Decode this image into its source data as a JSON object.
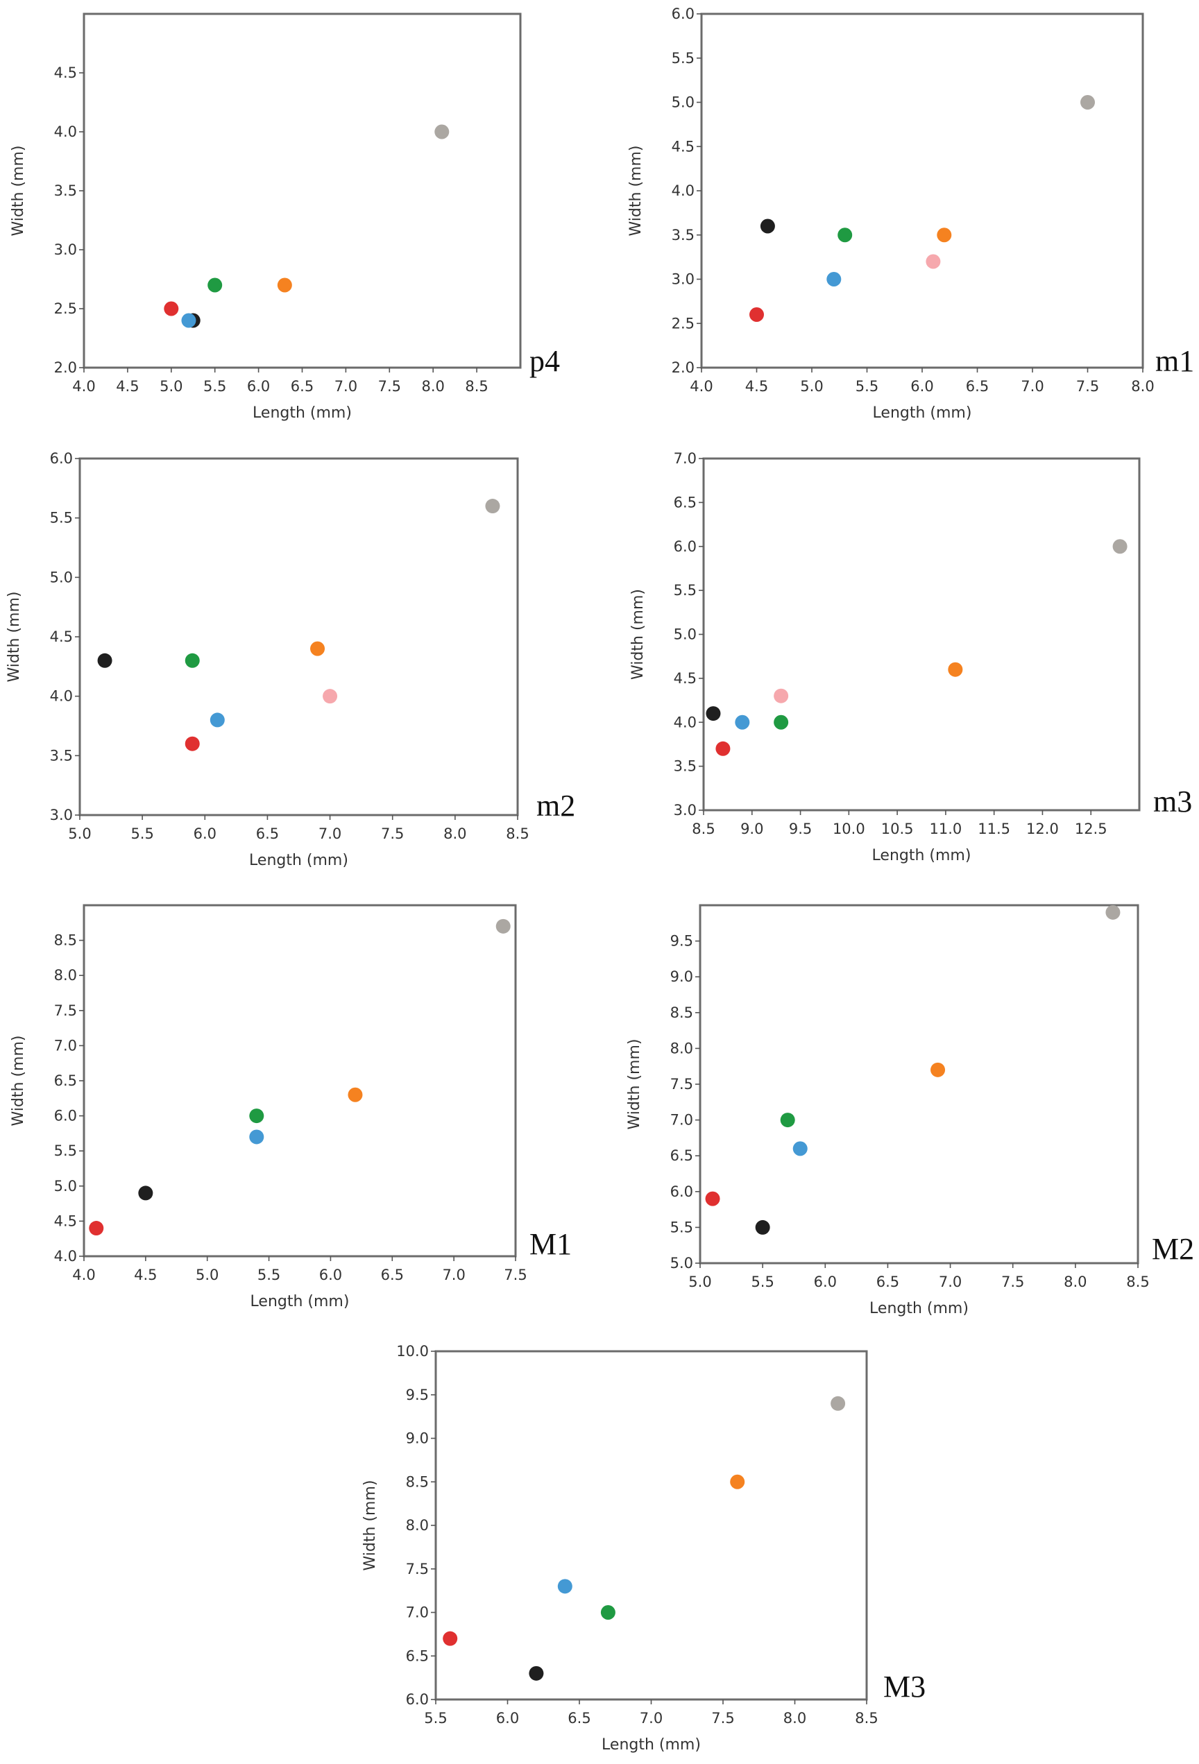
{
  "colors": {
    "gray": "#aba7a2",
    "black": "#1f1f1f",
    "green": "#1f9a42",
    "orange": "#f58220",
    "pink": "#f6a8ad",
    "blue": "#4499d4",
    "red": "#e03030"
  },
  "chart_data": [
    {
      "type": "scatter",
      "label": "p4",
      "xlabel": "Length (mm)",
      "ylabel": "Width (mm)",
      "xlim": [
        4.0,
        9.0
      ],
      "ylim": [
        2.0,
        5.0
      ],
      "xticks": [
        "4.0",
        "4.5",
        "5.0",
        "5.5",
        "6.0",
        "6.5",
        "7.0",
        "7.5",
        "8.0",
        "8.5"
      ],
      "yticks": [
        "2.0",
        "2.5",
        "3.0",
        "3.5",
        "4.0",
        "4.5"
      ],
      "points": [
        {
          "x": 5.0,
          "y": 2.5,
          "color": "red"
        },
        {
          "x": 5.25,
          "y": 2.4,
          "color": "black"
        },
        {
          "x": 5.2,
          "y": 2.4,
          "color": "blue"
        },
        {
          "x": 5.5,
          "y": 2.7,
          "color": "green"
        },
        {
          "x": 6.3,
          "y": 2.7,
          "color": "orange"
        },
        {
          "x": 8.1,
          "y": 4.0,
          "color": "gray"
        }
      ]
    },
    {
      "type": "scatter",
      "label": "m1",
      "xlabel": "Length (mm)",
      "ylabel": "Width (mm)",
      "xlim": [
        4.0,
        8.0
      ],
      "ylim": [
        2.0,
        6.0
      ],
      "xticks": [
        "4.0",
        "4.5",
        "5.0",
        "5.5",
        "6.0",
        "6.5",
        "7.0",
        "7.5",
        "8.0"
      ],
      "yticks": [
        "2.0",
        "2.5",
        "3.0",
        "3.5",
        "4.0",
        "4.5",
        "5.0",
        "5.5",
        "6.0"
      ],
      "points": [
        {
          "x": 4.5,
          "y": 2.6,
          "color": "red"
        },
        {
          "x": 4.6,
          "y": 3.6,
          "color": "black"
        },
        {
          "x": 5.2,
          "y": 3.0,
          "color": "blue"
        },
        {
          "x": 5.3,
          "y": 3.5,
          "color": "green"
        },
        {
          "x": 6.1,
          "y": 3.2,
          "color": "pink"
        },
        {
          "x": 6.2,
          "y": 3.5,
          "color": "orange"
        },
        {
          "x": 7.5,
          "y": 5.0,
          "color": "gray"
        }
      ]
    },
    {
      "type": "scatter",
      "label": "m2",
      "xlabel": "Length (mm)",
      "ylabel": "Width (mm)",
      "xlim": [
        5.0,
        8.5
      ],
      "ylim": [
        3.0,
        6.0
      ],
      "xticks": [
        "5.0",
        "5.5",
        "6.0",
        "6.5",
        "7.0",
        "7.5",
        "8.0",
        "8.5"
      ],
      "yticks": [
        "3.0",
        "3.5",
        "4.0",
        "4.5",
        "5.0",
        "5.5",
        "6.0"
      ],
      "points": [
        {
          "x": 5.2,
          "y": 4.3,
          "color": "black"
        },
        {
          "x": 5.9,
          "y": 4.3,
          "color": "green"
        },
        {
          "x": 5.9,
          "y": 3.6,
          "color": "red"
        },
        {
          "x": 6.1,
          "y": 3.8,
          "color": "blue"
        },
        {
          "x": 6.9,
          "y": 4.4,
          "color": "orange"
        },
        {
          "x": 7.0,
          "y": 4.0,
          "color": "pink"
        },
        {
          "x": 8.3,
          "y": 5.6,
          "color": "gray"
        }
      ]
    },
    {
      "type": "scatter",
      "label": "m3",
      "xlabel": "Length (mm)",
      "ylabel": "Width (mm)",
      "xlim": [
        8.5,
        13.0
      ],
      "ylim": [
        3.0,
        7.0
      ],
      "xticks": [
        "8.5",
        "9.0",
        "9.5",
        "10.0",
        "10.5",
        "11.0",
        "11.5",
        "12.0",
        "12.5"
      ],
      "yticks": [
        "3.0",
        "3.5",
        "4.0",
        "4.5",
        "5.0",
        "5.5",
        "6.0",
        "6.5",
        "7.0"
      ],
      "points": [
        {
          "x": 8.6,
          "y": 4.1,
          "color": "black"
        },
        {
          "x": 8.7,
          "y": 3.7,
          "color": "red"
        },
        {
          "x": 8.9,
          "y": 4.0,
          "color": "blue"
        },
        {
          "x": 9.3,
          "y": 4.3,
          "color": "pink"
        },
        {
          "x": 9.3,
          "y": 4.0,
          "color": "green"
        },
        {
          "x": 11.1,
          "y": 4.6,
          "color": "orange"
        },
        {
          "x": 12.8,
          "y": 6.0,
          "color": "gray"
        }
      ]
    },
    {
      "type": "scatter",
      "label": "M1",
      "xlabel": "Length (mm)",
      "ylabel": "Width (mm)",
      "xlim": [
        4.0,
        7.5
      ],
      "ylim": [
        4.0,
        9.0
      ],
      "xticks": [
        "4.0",
        "4.5",
        "5.0",
        "5.5",
        "6.0",
        "6.5",
        "7.0",
        "7.5"
      ],
      "yticks": [
        "4.0",
        "4.5",
        "5.0",
        "5.5",
        "6.0",
        "6.5",
        "7.0",
        "7.5",
        "8.0",
        "8.5"
      ],
      "points": [
        {
          "x": 4.1,
          "y": 4.4,
          "color": "red"
        },
        {
          "x": 4.5,
          "y": 4.9,
          "color": "black"
        },
        {
          "x": 5.4,
          "y": 5.7,
          "color": "blue"
        },
        {
          "x": 5.4,
          "y": 6.0,
          "color": "green"
        },
        {
          "x": 6.2,
          "y": 6.3,
          "color": "orange"
        },
        {
          "x": 7.4,
          "y": 8.7,
          "color": "gray"
        }
      ]
    },
    {
      "type": "scatter",
      "label": "M2",
      "xlabel": "Length (mm)",
      "ylabel": "Width (mm)",
      "xlim": [
        5.0,
        8.5
      ],
      "ylim": [
        5.0,
        10.0
      ],
      "xticks": [
        "5.0",
        "5.5",
        "6.0",
        "6.5",
        "7.0",
        "7.5",
        "8.0",
        "8.5"
      ],
      "yticks": [
        "5.0",
        "5.5",
        "6.0",
        "6.5",
        "7.0",
        "7.5",
        "8.0",
        "8.5",
        "9.0",
        "9.5"
      ],
      "points": [
        {
          "x": 5.1,
          "y": 5.9,
          "color": "red"
        },
        {
          "x": 5.5,
          "y": 5.5,
          "color": "black"
        },
        {
          "x": 5.7,
          "y": 7.0,
          "color": "green"
        },
        {
          "x": 5.8,
          "y": 6.6,
          "color": "blue"
        },
        {
          "x": 6.9,
          "y": 7.7,
          "color": "orange"
        },
        {
          "x": 8.3,
          "y": 9.9,
          "color": "gray"
        }
      ]
    },
    {
      "type": "scatter",
      "label": "M3",
      "xlabel": "Length (mm)",
      "ylabel": "Width (mm)",
      "xlim": [
        5.5,
        8.5
      ],
      "ylim": [
        6.0,
        10.0
      ],
      "xticks": [
        "5.5",
        "6.0",
        "6.5",
        "7.0",
        "7.5",
        "8.0",
        "8.5"
      ],
      "yticks": [
        "6.0",
        "6.5",
        "7.0",
        "7.5",
        "8.0",
        "8.5",
        "9.0",
        "9.5",
        "10.0"
      ],
      "points": [
        {
          "x": 5.6,
          "y": 6.7,
          "color": "red"
        },
        {
          "x": 6.2,
          "y": 6.3,
          "color": "black"
        },
        {
          "x": 6.4,
          "y": 7.3,
          "color": "blue"
        },
        {
          "x": 6.7,
          "y": 7.0,
          "color": "green"
        },
        {
          "x": 7.6,
          "y": 8.5,
          "color": "orange"
        },
        {
          "x": 8.3,
          "y": 9.4,
          "color": "gray"
        }
      ]
    }
  ]
}
